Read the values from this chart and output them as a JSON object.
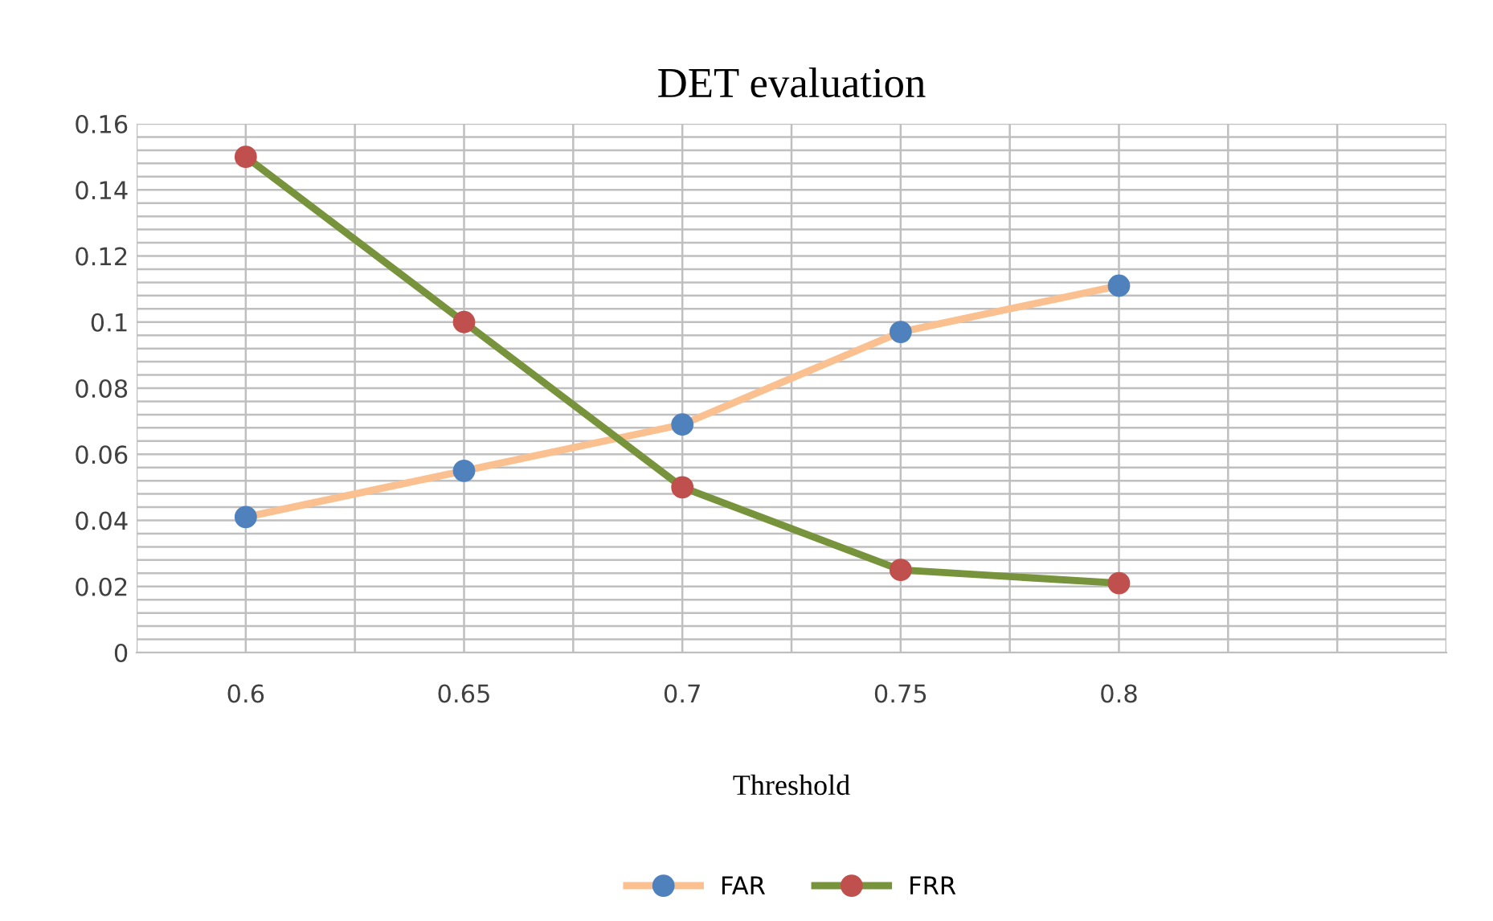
{
  "chart_data": {
    "type": "line",
    "title": "DET evaluation",
    "xlabel": "Threshold",
    "categories": [
      "0.6",
      "0.65",
      "0.7",
      "0.75",
      "0.8",
      null
    ],
    "series": [
      {
        "name": "FAR",
        "color": "#fac090",
        "colors": [
          "#4f81bd",
          "#4f81bd",
          "#4f81bd",
          "#4f81bd",
          "#4f81bd",
          null
        ],
        "values": [
          0.041,
          0.055,
          0.069,
          0.097,
          0.111,
          null
        ]
      },
      {
        "name": "FRR",
        "color": "#77933c",
        "colors": [
          "#c0504d",
          "#c0504d",
          "#c0504d",
          "#c0504d",
          "#c0504d",
          null
        ],
        "values": [
          0.15,
          0.1,
          0.05,
          0.025,
          0.021,
          null
        ]
      }
    ],
    "ylim": [
      0,
      0.16
    ],
    "yticks": [
      0,
      0.02,
      0.04,
      0.06,
      0.08,
      {
        "value": 0.1,
        "label": "0.1"
      },
      0.12,
      0.14,
      0.16
    ],
    "grid": true,
    "legend": "bottom",
    "marker": "circle",
    "line_style": "solid"
  }
}
